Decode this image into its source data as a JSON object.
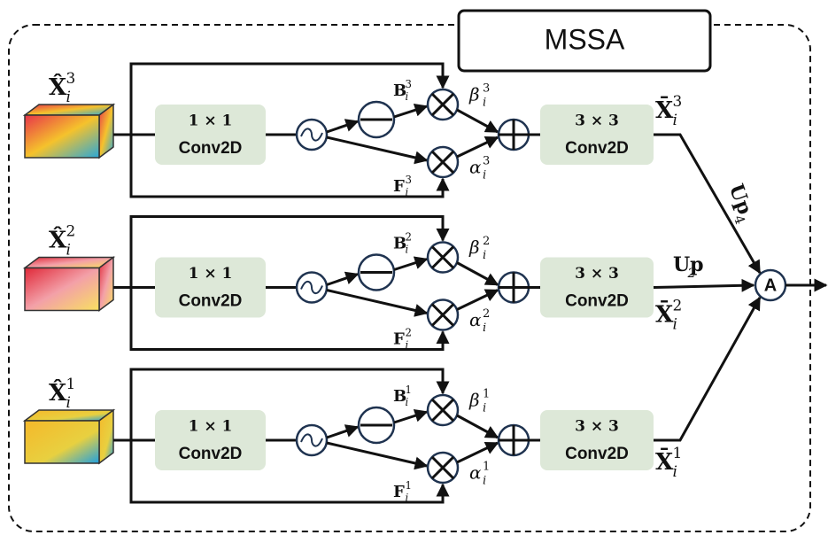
{
  "title": "MSSA",
  "aggregate": "A",
  "up_top": {
    "base": "Up",
    "sub": "4"
  },
  "up_mid": {
    "base": "Up",
    "sub": "2"
  },
  "branches": [
    {
      "input": {
        "base": "X̂",
        "sub": "i",
        "sup": "3"
      },
      "conv1": [
        "1 × 1",
        "Conv2D"
      ],
      "b": {
        "base": "B",
        "sub": "i",
        "sup": "3"
      },
      "f": {
        "base": "F",
        "sub": "i",
        "sup": "3"
      },
      "beta": {
        "base": "β",
        "sub": "i",
        "sup": "3"
      },
      "alpha": {
        "base": "α",
        "sub": "i",
        "sup": "3"
      },
      "conv3": [
        "3 × 3",
        "Conv2D"
      ],
      "output": {
        "base": "X̄",
        "sub": "i",
        "sup": "3"
      }
    },
    {
      "input": {
        "base": "X̂",
        "sub": "i",
        "sup": "2"
      },
      "conv1": [
        "1 × 1",
        "Conv2D"
      ],
      "b": {
        "base": "B",
        "sub": "i",
        "sup": "2"
      },
      "f": {
        "base": "F",
        "sub": "i",
        "sup": "2"
      },
      "beta": {
        "base": "β",
        "sub": "i",
        "sup": "2"
      },
      "alpha": {
        "base": "α",
        "sub": "i",
        "sup": "2"
      },
      "conv3": [
        "3 × 3",
        "Conv2D"
      ],
      "output": {
        "base": "X̄",
        "sub": "i",
        "sup": "2"
      }
    },
    {
      "input": {
        "base": "X̂",
        "sub": "i",
        "sup": "1"
      },
      "conv1": [
        "1 × 1",
        "Conv2D"
      ],
      "b": {
        "base": "B",
        "sub": "i",
        "sup": "1"
      },
      "f": {
        "base": "F",
        "sub": "i",
        "sup": "1"
      },
      "beta": {
        "base": "β",
        "sub": "i",
        "sup": "1"
      },
      "alpha": {
        "base": "α",
        "sub": "i",
        "sup": "1"
      },
      "conv3": [
        "3 × 3",
        "Conv2D"
      ],
      "output": {
        "base": "X̄",
        "sub": "i",
        "sup": "1"
      }
    }
  ]
}
